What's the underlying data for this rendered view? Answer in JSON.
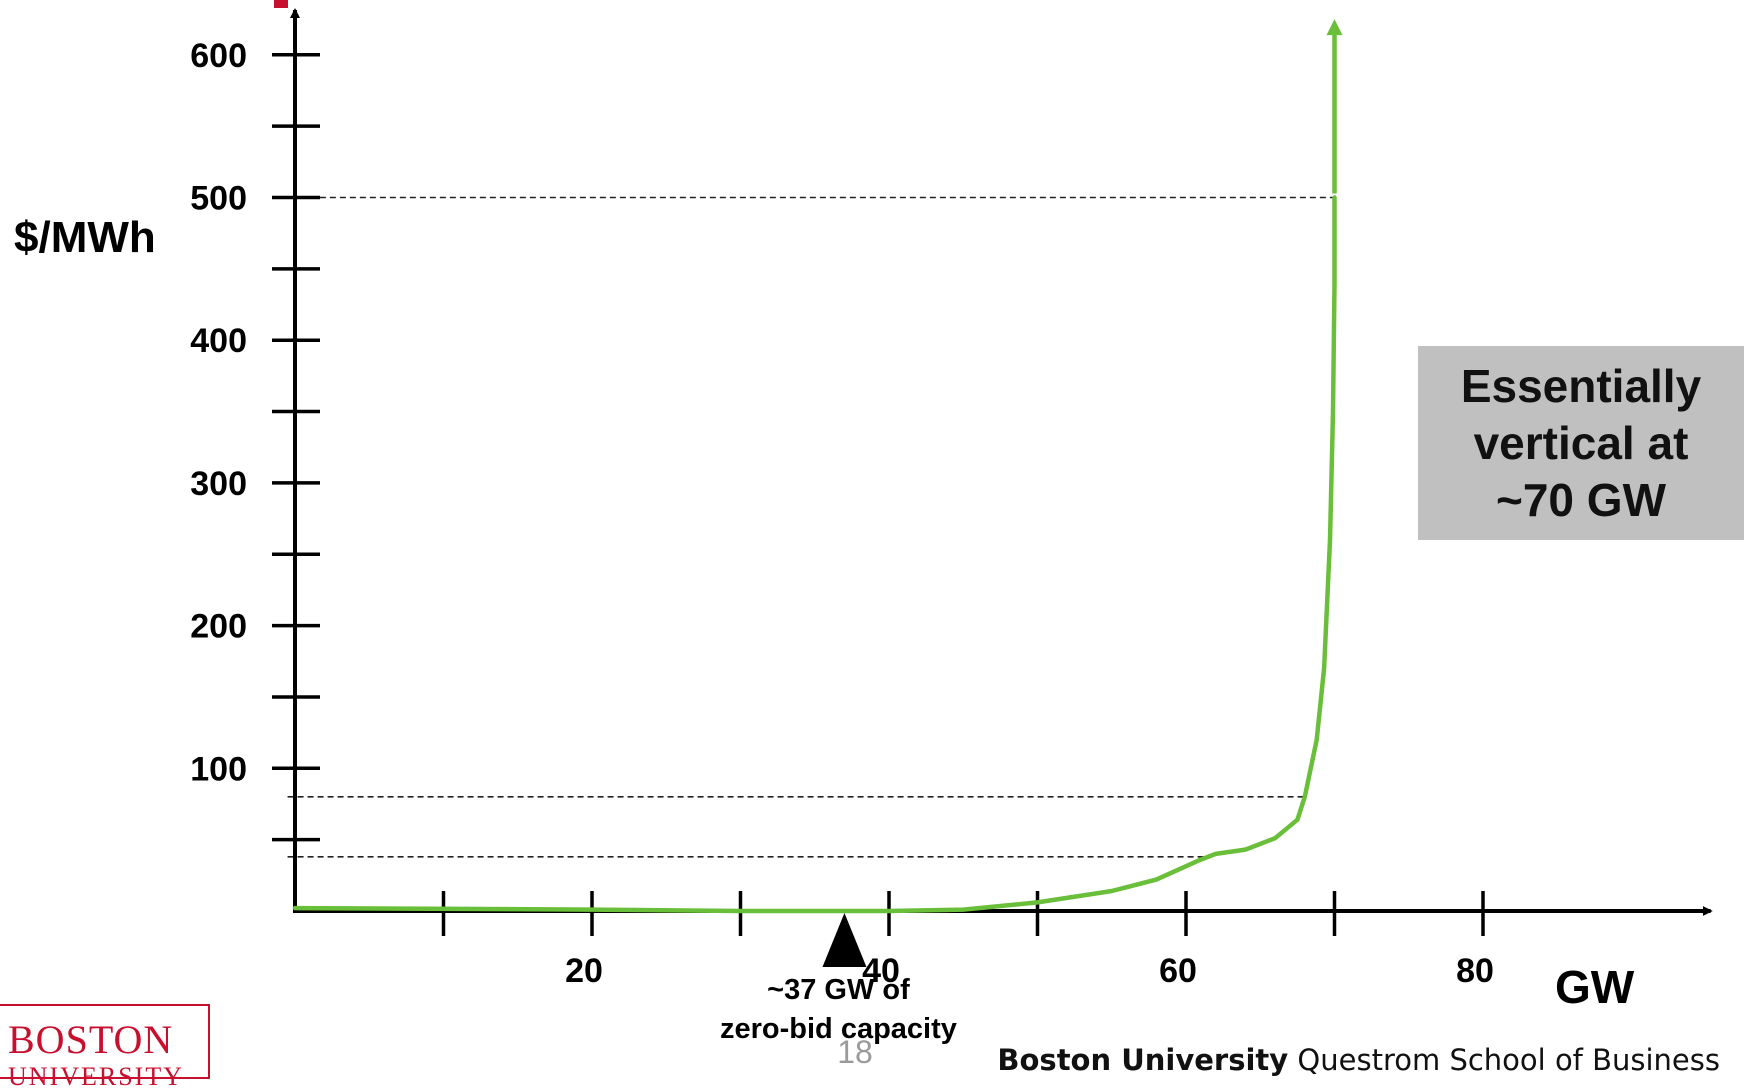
{
  "chart_data": {
    "type": "line",
    "ylabel": "$/MWh",
    "xlabel": "GW",
    "xlim": [
      0,
      95
    ],
    "ylim": [
      0,
      600
    ],
    "x_tick_labels": [
      20,
      40,
      60,
      80
    ],
    "x_minor_ticks": [
      10,
      20,
      30,
      40,
      50,
      60,
      70,
      80
    ],
    "y_tick_labels": [
      100,
      200,
      300,
      400,
      500,
      600
    ],
    "y_minor_ticks": [
      50,
      150,
      250,
      350,
      450,
      550
    ],
    "series": [
      {
        "color": "#6abf3a",
        "points": [
          [
            0,
            2
          ],
          [
            20,
            1
          ],
          [
            30,
            0
          ],
          [
            37,
            0
          ],
          [
            40,
            0
          ],
          [
            45,
            1
          ],
          [
            50,
            6
          ],
          [
            55,
            14
          ],
          [
            58,
            22
          ],
          [
            61,
            36
          ],
          [
            62,
            40
          ],
          [
            64,
            43
          ],
          [
            66,
            51
          ],
          [
            67.5,
            64
          ],
          [
            68,
            80
          ],
          [
            68.8,
            120
          ],
          [
            69.3,
            170
          ],
          [
            69.7,
            260
          ],
          [
            69.9,
            350
          ],
          [
            70,
            440
          ],
          [
            70,
            500
          ]
        ]
      }
    ],
    "arrow_segment": {
      "x": 70,
      "y_from": 500,
      "y_to": 625
    },
    "reference_lines": [
      {
        "y": 500,
        "x_from": 1,
        "x_to": 70
      },
      {
        "y": 80,
        "x_from": -0.5,
        "x_to": 68
      },
      {
        "y": 38,
        "x_from": -0.5,
        "x_to": 61.5
      }
    ],
    "marker": {
      "x": 37,
      "label_line1": "~37 GW of",
      "label_line2": "zero-bid capacity"
    },
    "axis_color": "#000000",
    "curve_color": "#6abf3a"
  },
  "callout": {
    "text": "Essentially\nvertical at\n~70 GW",
    "background": "#c0c0c0"
  },
  "slide_number": "18",
  "footer": {
    "bold": "Boston University",
    "regular": " Questrom School of Business"
  },
  "logo": {
    "line1": "BOSTON",
    "line2": "UNIVERSITY",
    "color": "#c8102e"
  }
}
